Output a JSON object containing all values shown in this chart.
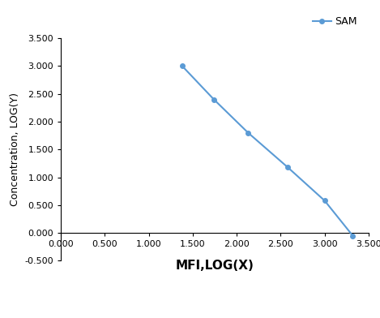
{
  "x": [
    1.38,
    1.74,
    2.13,
    2.58,
    3.0,
    3.32
  ],
  "y": [
    3.0,
    2.4,
    1.8,
    1.18,
    0.58,
    -0.05
  ],
  "line_color": "#5B9BD5",
  "marker_color": "#5B9BD5",
  "marker_style": "o",
  "marker_size": 4,
  "line_width": 1.5,
  "legend_label": "SAM",
  "xlabel": "MFI,LOG(X)",
  "ylabel": "Concentration, LOG(Y)",
  "xlim": [
    0.0,
    3.5
  ],
  "ylim": [
    -0.5,
    3.5
  ],
  "xticks": [
    0.0,
    0.5,
    1.0,
    1.5,
    2.0,
    2.5,
    3.0,
    3.5
  ],
  "yticks": [
    -0.5,
    0.0,
    0.5,
    1.0,
    1.5,
    2.0,
    2.5,
    3.0,
    3.5
  ],
  "xlabel_fontsize": 11,
  "ylabel_fontsize": 9,
  "tick_fontsize": 8,
  "legend_fontsize": 9,
  "background_color": "#ffffff",
  "spine_color": "#000000"
}
